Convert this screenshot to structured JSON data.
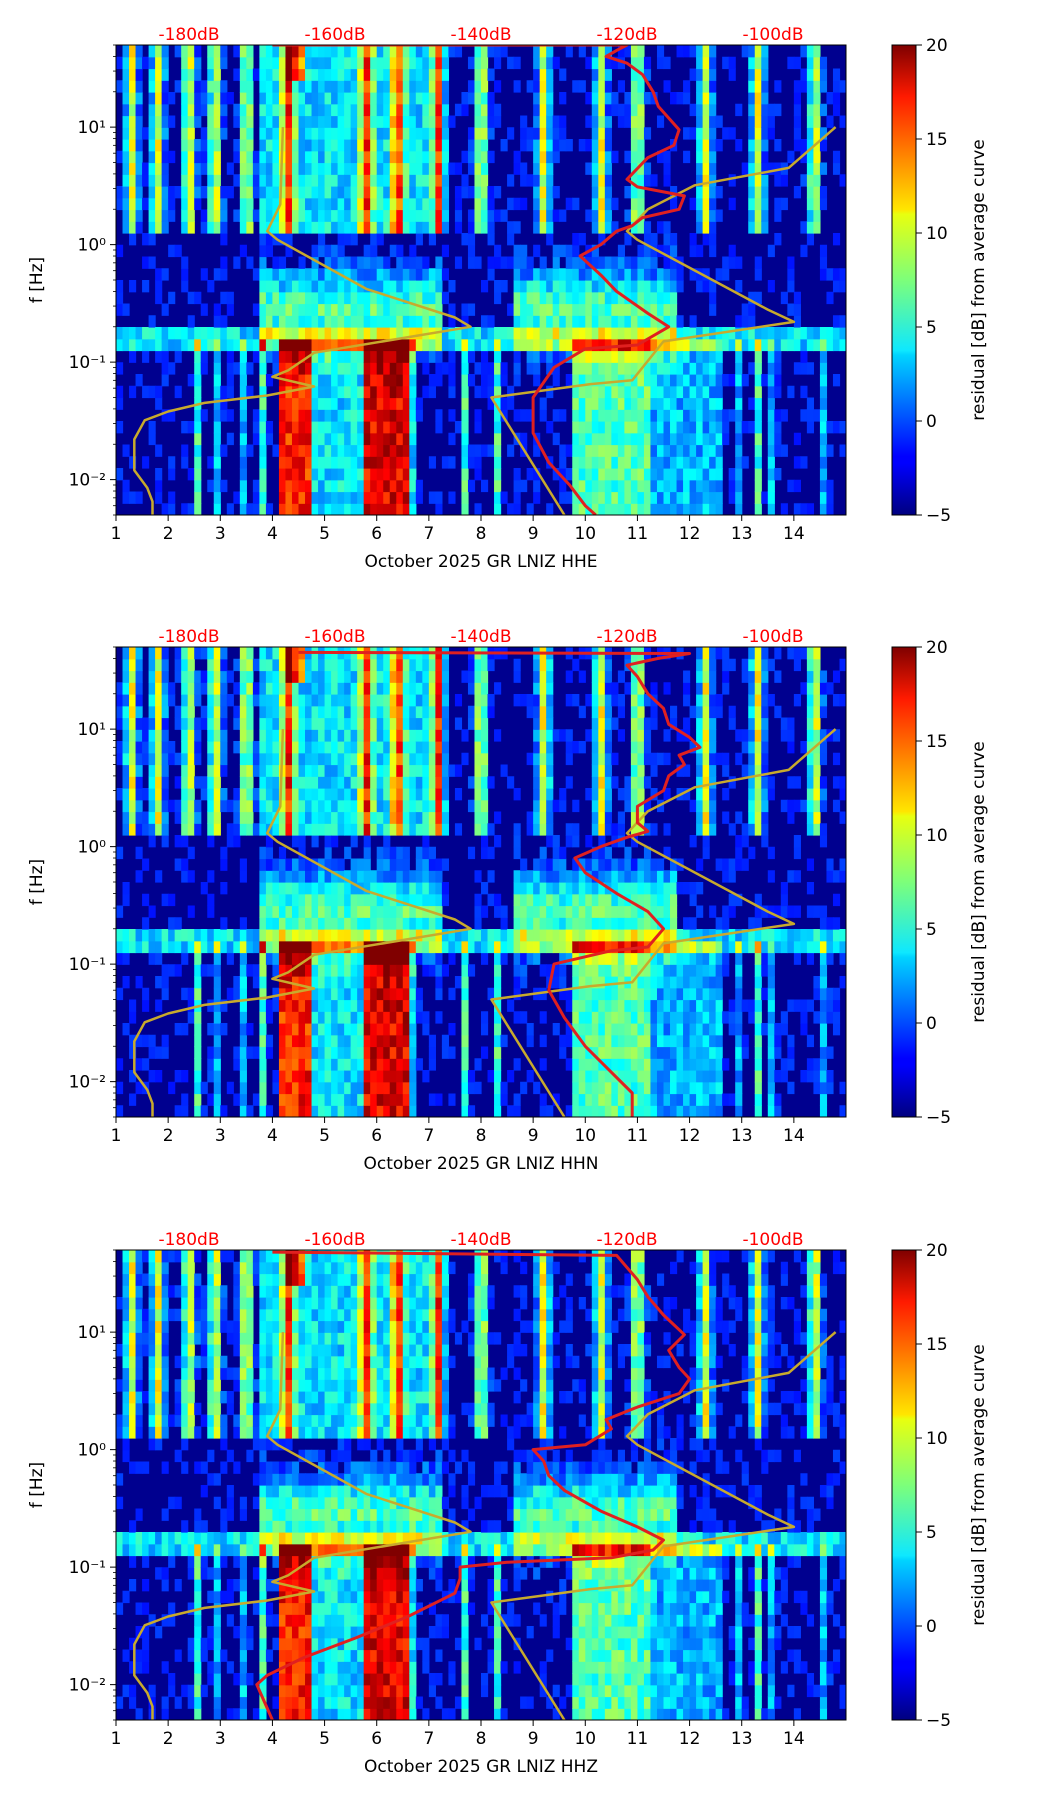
{
  "figure": {
    "background": "#ffffff"
  },
  "colorbar": {
    "label": "residual [dB] from average curve",
    "range": [
      -5,
      20
    ],
    "ticks": [
      -5,
      0,
      5,
      10,
      15,
      20
    ],
    "colormap": "jet"
  },
  "chart_data": [
    {
      "type": "heatmap",
      "title": "",
      "xlabel": "October 2025 GR LNIZ  HHE",
      "ylabel": "f [Hz]",
      "xlim": [
        1,
        15
      ],
      "ylim": [
        0.005,
        50
      ],
      "yscale": "log",
      "xticks": [
        1,
        2,
        3,
        4,
        5,
        6,
        7,
        8,
        9,
        10,
        11,
        12,
        13,
        14
      ],
      "yticks": [
        {
          "value": 0.01,
          "label": "10⁻²"
        },
        {
          "value": 0.1,
          "label": "10⁻¹"
        },
        {
          "value": 1,
          "label": "10⁰"
        },
        {
          "value": 10,
          "label": "10¹"
        }
      ],
      "top_axis": {
        "color": "#ff0000",
        "ticks": [
          {
            "x": 2.4,
            "label": "-180dB"
          },
          {
            "x": 5.2,
            "label": "-160dB"
          },
          {
            "x": 8.0,
            "label": "-140dB"
          },
          {
            "x": 10.8,
            "label": "-120dB"
          },
          {
            "x": 13.6,
            "label": "-100dB"
          }
        ]
      },
      "series": [
        {
          "name": "",
          "color": "#c8aa2d",
          "x": [
            1.7,
            1.7,
            1.6,
            1.35,
            1.35,
            1.35,
            1.55,
            2.0,
            2.7,
            3.9,
            4.8,
            4.0,
            4.3,
            4.8,
            7.8,
            7.5,
            5.8,
            4.1,
            3.9,
            4.15,
            4.2
          ],
          "y": [
            0.005,
            0.0065,
            0.0085,
            0.012,
            0.015,
            0.022,
            0.032,
            0.038,
            0.045,
            0.052,
            0.062,
            0.075,
            0.085,
            0.12,
            0.2,
            0.24,
            0.42,
            1.1,
            1.3,
            2.2,
            10
          ]
        },
        {
          "name": "",
          "color": "#c8aa2d",
          "x": [
            9.6,
            8.2,
            10.1,
            10.9,
            11.5,
            14.0,
            13.5,
            11.0,
            10.8,
            11.2,
            12.1,
            13.9,
            14.8
          ],
          "y": [
            0.005,
            0.05,
            0.065,
            0.07,
            0.15,
            0.22,
            0.28,
            1.1,
            1.3,
            2.0,
            3.2,
            4.5,
            10
          ]
        },
        {
          "name": "",
          "color": "#e02020",
          "x": [
            10.2,
            10.0,
            9.7,
            9.3,
            9.0,
            9.0,
            9.4,
            10.0,
            11.0,
            11.6,
            11.2,
            10.6,
            10.3,
            9.9,
            10.3,
            10.6,
            10.9,
            11.1,
            11.8,
            11.9,
            11.0,
            10.8,
            11.2,
            11.7,
            11.8,
            11.4,
            11.3,
            11.1,
            10.8,
            10.4,
            10.6,
            10.8,
            4.0
          ],
          "y": [
            0.005,
            0.006,
            0.009,
            0.014,
            0.025,
            0.05,
            0.09,
            0.13,
            0.14,
            0.2,
            0.26,
            0.4,
            0.55,
            0.8,
            1.0,
            1.3,
            1.45,
            1.7,
            2.0,
            2.6,
            3.1,
            3.6,
            5.5,
            7.0,
            9.5,
            15,
            20,
            28,
            35,
            40,
            45,
            50,
            50
          ]
        }
      ]
    },
    {
      "type": "heatmap",
      "title": "",
      "xlabel": "October 2025 GR LNIZ  HHN",
      "ylabel": "f [Hz]",
      "xlim": [
        1,
        15
      ],
      "ylim": [
        0.005,
        50
      ],
      "yscale": "log",
      "xticks": [
        1,
        2,
        3,
        4,
        5,
        6,
        7,
        8,
        9,
        10,
        11,
        12,
        13,
        14
      ],
      "yticks": [
        {
          "value": 0.01,
          "label": "10⁻²"
        },
        {
          "value": 0.1,
          "label": "10⁻¹"
        },
        {
          "value": 1,
          "label": "10⁰"
        },
        {
          "value": 10,
          "label": "10¹"
        }
      ],
      "top_axis": {
        "color": "#ff0000",
        "ticks": [
          {
            "x": 2.4,
            "label": "-180dB"
          },
          {
            "x": 5.2,
            "label": "-160dB"
          },
          {
            "x": 8.0,
            "label": "-140dB"
          },
          {
            "x": 10.8,
            "label": "-120dB"
          },
          {
            "x": 13.6,
            "label": "-100dB"
          }
        ]
      },
      "series": [
        {
          "name": "",
          "color": "#c8aa2d",
          "x": [
            1.7,
            1.7,
            1.6,
            1.35,
            1.35,
            1.35,
            1.55,
            2.0,
            2.7,
            3.9,
            4.8,
            4.0,
            4.3,
            4.8,
            7.8,
            7.5,
            5.8,
            4.1,
            3.9,
            4.15,
            4.2
          ],
          "y": [
            0.005,
            0.0065,
            0.0085,
            0.012,
            0.015,
            0.022,
            0.032,
            0.038,
            0.045,
            0.052,
            0.062,
            0.075,
            0.085,
            0.12,
            0.2,
            0.24,
            0.42,
            1.1,
            1.3,
            2.2,
            10
          ]
        },
        {
          "name": "",
          "color": "#c8aa2d",
          "x": [
            9.6,
            8.2,
            10.1,
            10.9,
            11.5,
            14.0,
            13.5,
            11.0,
            10.8,
            11.2,
            12.1,
            13.9,
            14.8
          ],
          "y": [
            0.005,
            0.05,
            0.065,
            0.07,
            0.15,
            0.22,
            0.28,
            1.1,
            1.3,
            2.0,
            3.2,
            4.5,
            10
          ]
        },
        {
          "name": "",
          "color": "#e02020",
          "x": [
            10.9,
            10.9,
            10.5,
            10.0,
            9.6,
            9.3,
            9.4,
            10.5,
            11.2,
            11.5,
            11.2,
            10.6,
            10.0,
            9.8,
            10.3,
            10.8,
            11.2,
            11.0,
            11.0,
            11.5,
            11.6,
            11.9,
            11.8,
            12.2,
            12.0,
            11.6,
            11.5,
            11.2,
            11.0,
            10.8,
            11.4,
            12.0,
            4.5
          ],
          "y": [
            0.005,
            0.008,
            0.012,
            0.02,
            0.035,
            0.06,
            0.1,
            0.13,
            0.14,
            0.2,
            0.28,
            0.4,
            0.6,
            0.8,
            1.0,
            1.2,
            1.35,
            1.6,
            2.2,
            3.0,
            4.0,
            5.0,
            6.0,
            7.0,
            8.5,
            11,
            15,
            20,
            28,
            35,
            40,
            44,
            45
          ]
        }
      ]
    },
    {
      "type": "heatmap",
      "title": "",
      "xlabel": "October 2025 GR LNIZ  HHZ",
      "ylabel": "f [Hz]",
      "xlim": [
        1,
        15
      ],
      "ylim": [
        0.005,
        50
      ],
      "yscale": "log",
      "xticks": [
        1,
        2,
        3,
        4,
        5,
        6,
        7,
        8,
        9,
        10,
        11,
        12,
        13,
        14
      ],
      "yticks": [
        {
          "value": 0.01,
          "label": "10⁻²"
        },
        {
          "value": 0.1,
          "label": "10⁻¹"
        },
        {
          "value": 1,
          "label": "10⁰"
        },
        {
          "value": 10,
          "label": "10¹"
        }
      ],
      "top_axis": {
        "color": "#ff0000",
        "ticks": [
          {
            "x": 2.4,
            "label": "-180dB"
          },
          {
            "x": 5.2,
            "label": "-160dB"
          },
          {
            "x": 8.0,
            "label": "-140dB"
          },
          {
            "x": 10.8,
            "label": "-120dB"
          },
          {
            "x": 13.6,
            "label": "-100dB"
          }
        ]
      },
      "series": [
        {
          "name": "",
          "color": "#c8aa2d",
          "x": [
            1.7,
            1.7,
            1.6,
            1.35,
            1.35,
            1.35,
            1.55,
            2.0,
            2.7,
            3.9,
            4.8,
            4.0,
            4.3,
            4.8,
            7.8,
            7.5,
            5.8,
            4.1,
            3.9,
            4.15,
            4.2
          ],
          "y": [
            0.005,
            0.0065,
            0.0085,
            0.012,
            0.015,
            0.022,
            0.032,
            0.038,
            0.045,
            0.052,
            0.062,
            0.075,
            0.085,
            0.12,
            0.2,
            0.24,
            0.42,
            1.1,
            1.3,
            2.2,
            10
          ]
        },
        {
          "name": "",
          "color": "#c8aa2d",
          "x": [
            9.6,
            8.2,
            10.1,
            10.9,
            11.5,
            14.0,
            13.5,
            11.0,
            10.8,
            11.2,
            12.1,
            13.9,
            14.8
          ],
          "y": [
            0.005,
            0.05,
            0.065,
            0.07,
            0.15,
            0.22,
            0.28,
            1.1,
            1.3,
            2.0,
            3.2,
            4.5,
            10
          ]
        },
        {
          "name": "",
          "color": "#e02020",
          "x": [
            4.0,
            3.7,
            3.9,
            4.6,
            5.6,
            6.6,
            7.5,
            7.6,
            7.6,
            8.5,
            9.5,
            10.5,
            11.3,
            11.5,
            11.0,
            10.3,
            9.6,
            9.3,
            9.2,
            9.0,
            9.5,
            10.0,
            10.5,
            10.4,
            11.0,
            11.8,
            12.0,
            11.8,
            11.6,
            11.9,
            11.5,
            11.2,
            11.0,
            10.6,
            4.0
          ],
          "y": [
            0.005,
            0.01,
            0.012,
            0.017,
            0.025,
            0.038,
            0.06,
            0.08,
            0.1,
            0.11,
            0.115,
            0.12,
            0.14,
            0.17,
            0.22,
            0.3,
            0.45,
            0.6,
            0.8,
            1.0,
            1.05,
            1.1,
            1.5,
            1.8,
            2.3,
            3.0,
            4.0,
            5.0,
            7.0,
            9.5,
            14,
            20,
            28,
            45,
            48
          ]
        }
      ]
    }
  ]
}
